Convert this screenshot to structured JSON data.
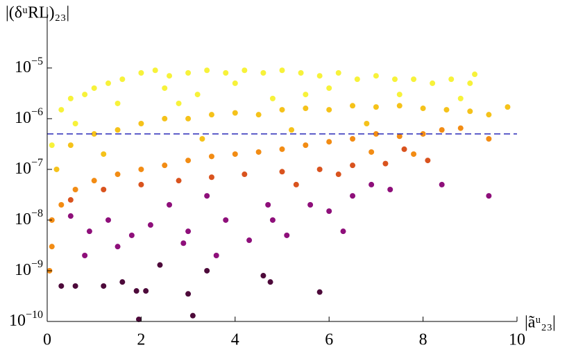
{
  "chart_data": {
    "type": "scatter",
    "y_label": "|(δᵘRL)₂₃|",
    "x_label": "|ãᵘ₂₃|",
    "xlim": [
      0,
      10
    ],
    "xticks": [
      0,
      2,
      4,
      6,
      8,
      10
    ],
    "ylim": [
      1e-10,
      0.00016
    ],
    "ylog": true,
    "yticks": [
      {
        "value": 1e-10,
        "label": "10−10"
      },
      {
        "value": 1e-09,
        "label": "10−9"
      },
      {
        "value": 1e-08,
        "label": "10−8"
      },
      {
        "value": 1e-07,
        "label": "10−7"
      },
      {
        "value": 1e-06,
        "label": "10−6"
      },
      {
        "value": 1e-05,
        "label": "10−5"
      }
    ],
    "hline": {
      "value": 5e-07,
      "color": "#2a2ab8",
      "dashed": true
    },
    "series": [
      {
        "color": "#f7f23a",
        "x": [
          0.1,
          0.3,
          0.5,
          0.8,
          1,
          1.3,
          1.6,
          2,
          2.3,
          2.6,
          3,
          3.4,
          3.8,
          4.2,
          4.6,
          5,
          5.4,
          5.8,
          6.2,
          6.6,
          7,
          7.4,
          7.8,
          8.2,
          8.6,
          9,
          9.1,
          2.5,
          4,
          6,
          1.5,
          3.2,
          5.5,
          7.5,
          8.8,
          0.6,
          2.8,
          4.8
        ],
        "values": [
          3e-07,
          1.5e-06,
          2.5e-06,
          3e-06,
          4e-06,
          5e-06,
          6e-06,
          8e-06,
          9e-06,
          7e-06,
          8e-06,
          9e-06,
          8e-06,
          9e-06,
          8e-06,
          9e-06,
          8e-06,
          7e-06,
          8e-06,
          6e-06,
          7e-06,
          6e-06,
          6e-06,
          5e-06,
          6e-06,
          5e-06,
          7.5e-06,
          4e-06,
          5e-06,
          4e-06,
          2e-06,
          3e-06,
          3e-06,
          3e-06,
          2.5e-06,
          8e-07,
          2e-06,
          2.5e-06
        ]
      },
      {
        "color": "#f5c21a",
        "x": [
          0.2,
          0.5,
          1,
          1.5,
          2,
          2.5,
          3,
          3.5,
          4,
          4.5,
          5,
          5.5,
          6,
          6.5,
          7,
          7.5,
          8,
          8.5,
          9,
          9.4,
          9.8,
          1.2,
          3.3,
          5.2,
          6.8
        ],
        "values": [
          1e-07,
          3e-07,
          5e-07,
          6e-07,
          8e-07,
          1e-06,
          1e-06,
          1.2e-06,
          1.3e-06,
          1.2e-06,
          1.5e-06,
          1.6e-06,
          1.5e-06,
          1.8e-06,
          1.7e-06,
          1.8e-06,
          1.6e-06,
          1.5e-06,
          1.4e-06,
          1.2e-06,
          1.7e-06,
          2e-07,
          4e-07,
          6e-07,
          8e-07
        ]
      },
      {
        "color": "#f28c14",
        "x": [
          0.1,
          0.3,
          0.6,
          1,
          1.5,
          2,
          2.5,
          3,
          3.5,
          4,
          4.5,
          5,
          5.5,
          6,
          6.5,
          7,
          7.5,
          8,
          8.4,
          8.8,
          9.4,
          0.05,
          0.1,
          7.8,
          6.9
        ],
        "values": [
          1e-08,
          2e-08,
          4e-08,
          6e-08,
          8e-08,
          1e-07,
          1.2e-07,
          1.5e-07,
          1.8e-07,
          2e-07,
          2.2e-07,
          2.5e-07,
          3e-07,
          3.5e-07,
          4e-07,
          5e-07,
          4.5e-07,
          5e-07,
          6e-07,
          6.5e-07,
          4e-07,
          1e-09,
          3e-09,
          2e-07,
          2.2e-07
        ]
      },
      {
        "color": "#d9531e",
        "x": [
          0.5,
          1.2,
          2,
          2.8,
          3.5,
          4.2,
          5,
          5.8,
          6.5,
          7.2,
          7.6,
          6.2,
          5.3,
          8.1
        ],
        "values": [
          2.5e-08,
          4e-08,
          5e-08,
          6e-08,
          7e-08,
          8e-08,
          9e-08,
          1e-07,
          1.2e-07,
          1.3e-07,
          2.5e-07,
          8e-08,
          5e-08,
          1.5e-07
        ]
      },
      {
        "color": "#8e0f7a",
        "x": [
          0.5,
          0.9,
          1.3,
          1.8,
          2.2,
          2.6,
          3,
          3.4,
          3.8,
          4.3,
          4.7,
          5.1,
          5.6,
          6,
          6.3,
          6.9,
          7.3,
          8.4,
          9.4,
          4.8,
          3.6,
          2.9,
          1.5,
          0.8,
          6.5
        ],
        "values": [
          1.2e-08,
          6e-09,
          1e-08,
          5e-09,
          8e-09,
          2e-08,
          6e-09,
          3e-08,
          1e-08,
          4e-09,
          2e-08,
          5e-09,
          2e-08,
          1.5e-08,
          6e-09,
          5e-08,
          4e-08,
          5e-08,
          3e-08,
          1e-08,
          2e-09,
          3.5e-09,
          3e-09,
          2e-09,
          3e-08
        ]
      },
      {
        "color": "#4d0a3a",
        "x": [
          0.3,
          0.6,
          1.2,
          1.9,
          2.1,
          1.95,
          3.1,
          3,
          4.6,
          4.75,
          5.8,
          3.4,
          2.4,
          1.6
        ],
        "values": [
          5e-10,
          5e-10,
          5e-10,
          4e-10,
          4e-10,
          1.1e-10,
          1.3e-10,
          3.5e-10,
          8e-10,
          6e-10,
          3.8e-10,
          1e-09,
          1.3e-09,
          6e-10
        ]
      }
    ]
  }
}
